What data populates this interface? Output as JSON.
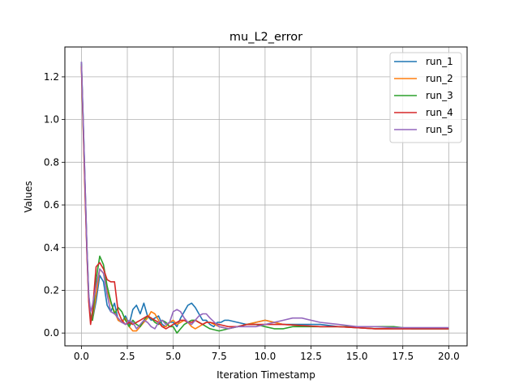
{
  "chart_data": {
    "type": "line",
    "title": "mu_L2_error",
    "xlabel": "Iteration Timestamp",
    "ylabel": "Values",
    "xlim": [
      -0.9,
      21.0
    ],
    "ylim": [
      -0.06,
      1.34
    ],
    "xticks": [
      0.0,
      2.5,
      5.0,
      7.5,
      10.0,
      12.5,
      15.0,
      17.5,
      20.0
    ],
    "xtick_labels": [
      "0.0",
      "2.5",
      "5.0",
      "7.5",
      "10.0",
      "12.5",
      "15.0",
      "17.5",
      "20.0"
    ],
    "yticks": [
      0.0,
      0.2,
      0.4,
      0.6,
      0.8,
      1.0,
      1.2
    ],
    "ytick_labels": [
      "0.0",
      "0.2",
      "0.4",
      "0.6",
      "0.8",
      "1.0",
      "1.2"
    ],
    "grid": true,
    "legend_position": "top-right",
    "series": [
      {
        "name": "run_1",
        "color": "#1f77b4",
        "x": [
          0.0,
          0.1,
          0.2,
          0.3,
          0.4,
          0.5,
          0.6,
          0.8,
          1.0,
          1.2,
          1.4,
          1.6,
          1.8,
          2.0,
          2.2,
          2.4,
          2.6,
          2.8,
          3.0,
          3.2,
          3.4,
          3.6,
          3.8,
          4.0,
          4.2,
          4.4,
          4.6,
          4.8,
          5.0,
          5.2,
          5.4,
          5.6,
          5.8,
          6.0,
          6.2,
          6.4,
          6.6,
          6.8,
          7.0,
          7.2,
          7.4,
          7.6,
          7.8,
          8.0,
          8.5,
          9.0,
          9.5,
          10.0,
          10.5,
          11.0,
          11.5,
          12.0,
          12.5,
          13.0,
          14.0,
          15.0,
          16.0,
          17.0,
          18.0,
          19.0,
          20.0
        ],
        "y": [
          1.27,
          1.0,
          0.7,
          0.4,
          0.18,
          0.08,
          0.06,
          0.15,
          0.27,
          0.24,
          0.13,
          0.1,
          0.14,
          0.06,
          0.05,
          0.08,
          0.04,
          0.11,
          0.13,
          0.09,
          0.14,
          0.08,
          0.06,
          0.07,
          0.08,
          0.04,
          0.03,
          0.05,
          0.05,
          0.03,
          0.07,
          0.1,
          0.13,
          0.14,
          0.12,
          0.09,
          0.06,
          0.06,
          0.04,
          0.03,
          0.05,
          0.05,
          0.06,
          0.06,
          0.05,
          0.04,
          0.05,
          0.06,
          0.05,
          0.04,
          0.04,
          0.04,
          0.04,
          0.04,
          0.03,
          0.025,
          0.02,
          0.02,
          0.02,
          0.02,
          0.02
        ]
      },
      {
        "name": "run_2",
        "color": "#ff7f0e",
        "x": [
          0.0,
          0.1,
          0.2,
          0.3,
          0.4,
          0.5,
          0.6,
          0.8,
          1.0,
          1.2,
          1.4,
          1.6,
          1.8,
          2.0,
          2.2,
          2.4,
          2.6,
          2.8,
          3.0,
          3.2,
          3.4,
          3.6,
          3.8,
          4.0,
          4.2,
          4.4,
          4.6,
          4.8,
          5.0,
          5.2,
          5.4,
          5.6,
          5.8,
          6.0,
          6.2,
          6.4,
          6.6,
          6.8,
          7.0,
          7.5,
          8.0,
          8.5,
          9.0,
          9.5,
          10.0,
          10.5,
          11.0,
          12.0,
          13.0,
          14.0,
          15.0,
          16.0,
          17.0,
          18.0,
          19.0,
          20.0
        ],
        "y": [
          1.25,
          0.95,
          0.65,
          0.38,
          0.15,
          0.07,
          0.06,
          0.18,
          0.3,
          0.28,
          0.2,
          0.14,
          0.1,
          0.06,
          0.05,
          0.07,
          0.03,
          0.01,
          0.01,
          0.03,
          0.05,
          0.07,
          0.1,
          0.09,
          0.06,
          0.03,
          0.03,
          0.05,
          0.06,
          0.04,
          0.05,
          0.06,
          0.05,
          0.03,
          0.02,
          0.03,
          0.04,
          0.05,
          0.05,
          0.03,
          0.02,
          0.03,
          0.04,
          0.05,
          0.06,
          0.05,
          0.04,
          0.035,
          0.03,
          0.03,
          0.025,
          0.02,
          0.02,
          0.02,
          0.02,
          0.02
        ]
      },
      {
        "name": "run_3",
        "color": "#2ca02c",
        "x": [
          0.0,
          0.1,
          0.2,
          0.3,
          0.4,
          0.5,
          0.6,
          0.8,
          1.0,
          1.2,
          1.4,
          1.6,
          1.8,
          2.0,
          2.2,
          2.4,
          2.6,
          2.8,
          3.0,
          3.2,
          3.4,
          3.6,
          3.8,
          4.0,
          4.2,
          4.4,
          4.6,
          4.8,
          5.0,
          5.2,
          5.4,
          5.6,
          5.8,
          6.0,
          6.2,
          6.4,
          6.6,
          6.8,
          7.0,
          7.5,
          8.0,
          8.5,
          9.0,
          9.5,
          10.0,
          10.5,
          11.0,
          11.5,
          12.0,
          13.0,
          14.0,
          15.0,
          16.0,
          17.0,
          18.0,
          19.0,
          20.0
        ],
        "y": [
          1.26,
          0.98,
          0.68,
          0.39,
          0.17,
          0.07,
          0.06,
          0.25,
          0.36,
          0.32,
          0.22,
          0.15,
          0.09,
          0.12,
          0.1,
          0.06,
          0.03,
          0.06,
          0.04,
          0.03,
          0.06,
          0.08,
          0.07,
          0.05,
          0.04,
          0.06,
          0.05,
          0.03,
          0.03,
          0.0,
          0.02,
          0.04,
          0.05,
          0.06,
          0.06,
          0.05,
          0.04,
          0.03,
          0.02,
          0.01,
          0.02,
          0.03,
          0.04,
          0.04,
          0.03,
          0.02,
          0.02,
          0.03,
          0.03,
          0.03,
          0.03,
          0.03,
          0.03,
          0.03,
          0.02,
          0.02,
          0.02
        ]
      },
      {
        "name": "run_4",
        "color": "#d62728",
        "x": [
          0.0,
          0.1,
          0.2,
          0.3,
          0.4,
          0.5,
          0.6,
          0.8,
          1.0,
          1.2,
          1.4,
          1.6,
          1.8,
          2.0,
          2.2,
          2.4,
          2.6,
          2.8,
          3.0,
          3.2,
          3.4,
          3.6,
          3.8,
          4.0,
          4.2,
          4.4,
          4.6,
          4.8,
          5.0,
          5.2,
          5.4,
          5.6,
          5.8,
          6.0,
          6.2,
          6.4,
          6.6,
          6.8,
          7.0,
          7.5,
          8.0,
          8.5,
          9.0,
          9.5,
          10.0,
          10.5,
          11.0,
          12.0,
          13.0,
          14.0,
          15.0,
          16.0,
          17.0,
          18.0,
          19.0,
          20.0
        ],
        "y": [
          1.25,
          0.97,
          0.66,
          0.37,
          0.15,
          0.04,
          0.1,
          0.31,
          0.33,
          0.3,
          0.25,
          0.24,
          0.24,
          0.1,
          0.06,
          0.04,
          0.05,
          0.04,
          0.05,
          0.06,
          0.07,
          0.08,
          0.07,
          0.06,
          0.05,
          0.03,
          0.02,
          0.03,
          0.04,
          0.05,
          0.06,
          0.06,
          0.05,
          0.05,
          0.06,
          0.05,
          0.04,
          0.05,
          0.05,
          0.04,
          0.03,
          0.03,
          0.04,
          0.04,
          0.04,
          0.04,
          0.04,
          0.035,
          0.03,
          0.03,
          0.025,
          0.02,
          0.02,
          0.02,
          0.02,
          0.02
        ]
      },
      {
        "name": "run_5",
        "color": "#9467bd",
        "x": [
          0.0,
          0.1,
          0.2,
          0.3,
          0.4,
          0.5,
          0.6,
          0.8,
          1.0,
          1.2,
          1.4,
          1.6,
          1.8,
          2.0,
          2.2,
          2.4,
          2.6,
          2.8,
          3.0,
          3.2,
          3.4,
          3.6,
          3.8,
          4.0,
          4.2,
          4.4,
          4.6,
          4.8,
          5.0,
          5.2,
          5.4,
          5.6,
          5.8,
          6.0,
          6.2,
          6.4,
          6.6,
          6.8,
          7.0,
          7.5,
          8.0,
          8.5,
          9.0,
          9.5,
          10.0,
          10.5,
          11.0,
          11.5,
          12.0,
          12.5,
          13.0,
          14.0,
          15.0,
          16.0,
          17.0,
          18.0,
          19.0,
          20.0
        ],
        "y": [
          1.27,
          0.99,
          0.7,
          0.4,
          0.18,
          0.1,
          0.13,
          0.22,
          0.3,
          0.28,
          0.18,
          0.1,
          0.09,
          0.07,
          0.05,
          0.04,
          0.06,
          0.05,
          0.02,
          0.04,
          0.06,
          0.05,
          0.03,
          0.02,
          0.05,
          0.06,
          0.04,
          0.05,
          0.1,
          0.11,
          0.1,
          0.07,
          0.05,
          0.04,
          0.06,
          0.08,
          0.09,
          0.09,
          0.07,
          0.03,
          0.02,
          0.03,
          0.03,
          0.03,
          0.04,
          0.05,
          0.06,
          0.07,
          0.07,
          0.06,
          0.05,
          0.04,
          0.03,
          0.03,
          0.025,
          0.025,
          0.025,
          0.025
        ]
      }
    ]
  }
}
